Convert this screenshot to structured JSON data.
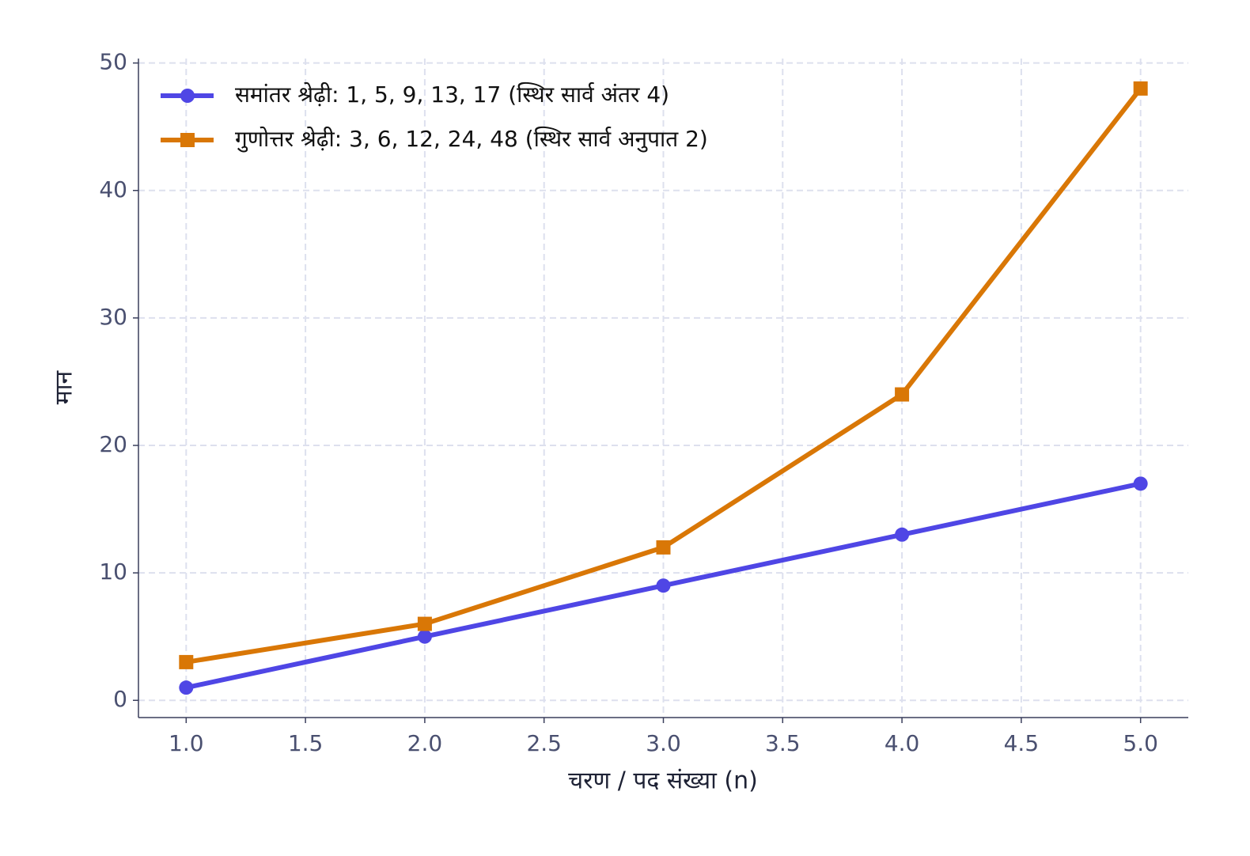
{
  "chart_data": {
    "type": "line",
    "xlabel": "चरण / पद संख्या (n)",
    "ylabel": "मान",
    "x": [
      1,
      2,
      3,
      4,
      5
    ],
    "series": [
      {
        "name": "समांतर श्रेढ़ी: 1, 5, 9, 13, 17 (स्थिर सार्व अंतर 4)",
        "color": "#4f46e5",
        "marker": "circle",
        "values": [
          1,
          5,
          9,
          13,
          17
        ]
      },
      {
        "name": "गुणोत्तर श्रेढ़ी: 3, 6, 12, 24, 48 (स्थिर सार्व अनुपात 2)",
        "color": "#d97706",
        "marker": "square",
        "values": [
          3,
          6,
          12,
          24,
          48
        ]
      }
    ],
    "xlim": [
      0.8,
      5.2
    ],
    "xticks": [
      {
        "value": 1,
        "label": "1.0"
      },
      1.5,
      {
        "value": 2,
        "label": "2.0"
      },
      2.5,
      {
        "value": 3,
        "label": "3.0"
      },
      3.5,
      {
        "value": 4,
        "label": "4.0"
      },
      4.5,
      {
        "value": 5,
        "label": "5.0"
      }
    ],
    "ylim": [
      -1.35,
      50.35
    ],
    "yticks": [
      0,
      10,
      20,
      30,
      40,
      50
    ],
    "grid": true,
    "legend": "upper left"
  }
}
